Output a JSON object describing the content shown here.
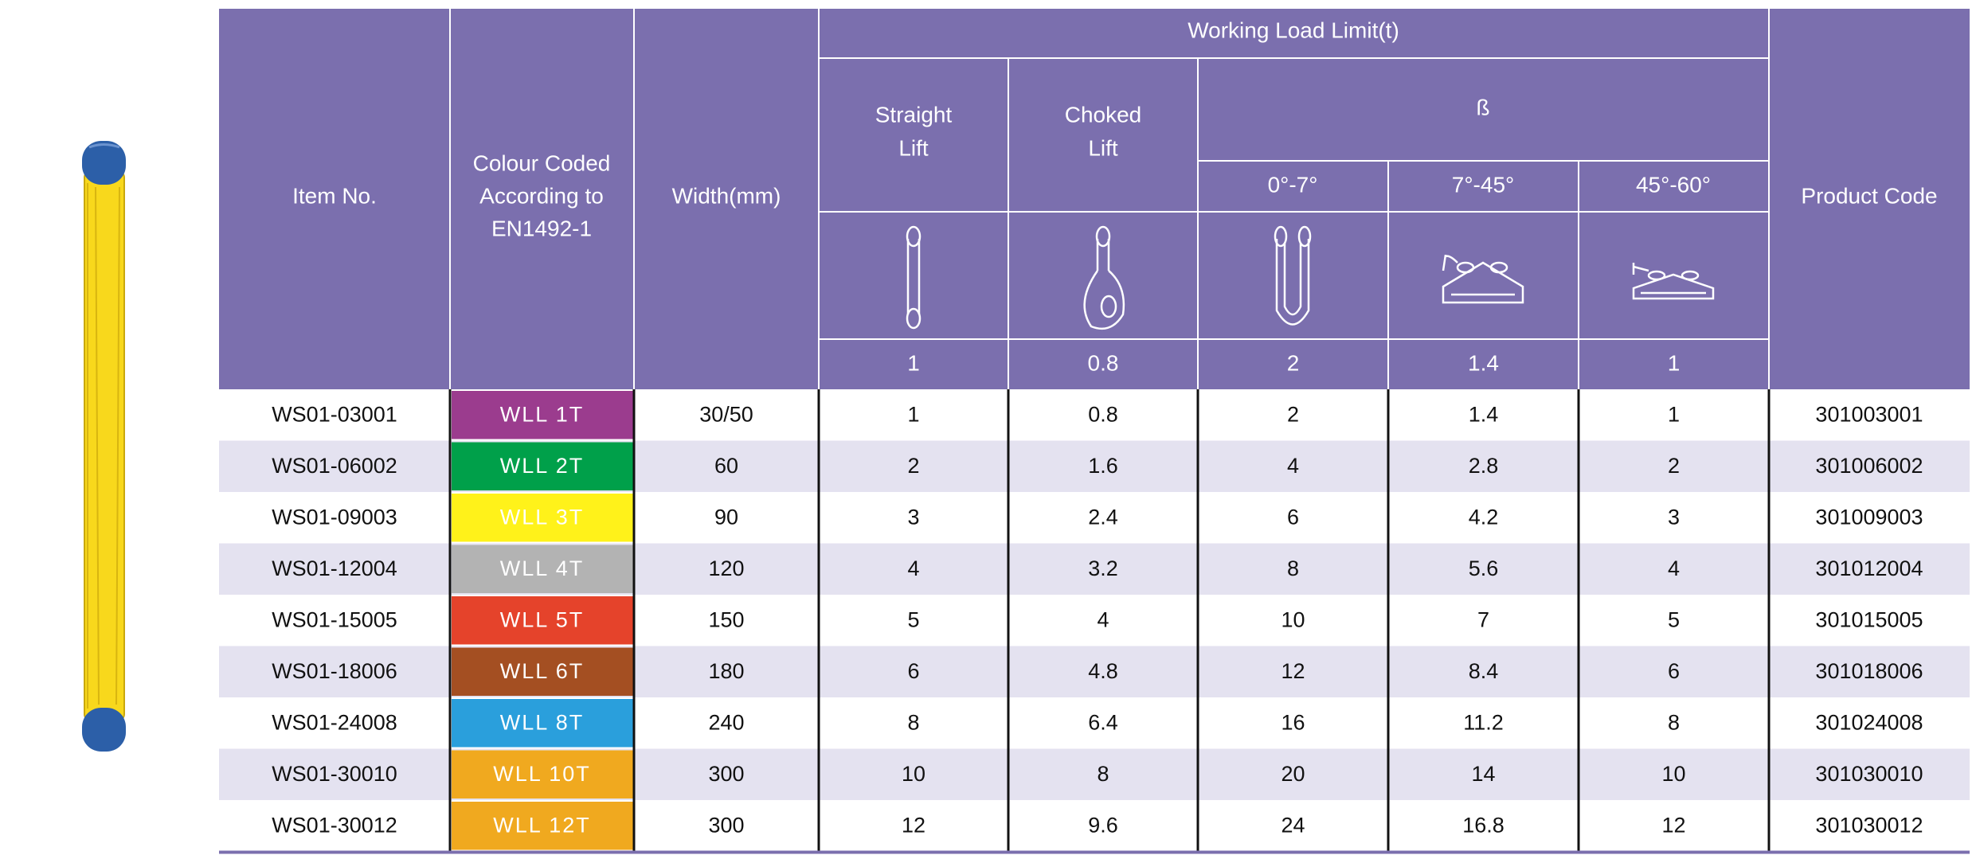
{
  "header": {
    "item_no": "Item No.",
    "colour": [
      "Colour Coded",
      "According to",
      "EN1492-1"
    ],
    "width": "Width(mm)",
    "wll": "Working Load Limit(t)",
    "straight": [
      "Straight",
      "Lift"
    ],
    "choked": [
      "Choked",
      "Lift"
    ],
    "beta": "ß",
    "angles": [
      "0°-7°",
      "7°-45°",
      "45°-60°"
    ],
    "factors": [
      1,
      0.8,
      2,
      1.4,
      1
    ],
    "product_code": "Product Code"
  },
  "rows": [
    [
      "WS01-03001",
      "WLL 1T",
      "30/50",
      1,
      0.8,
      2,
      1.4,
      1,
      "301003001"
    ],
    [
      "WS01-06002",
      "WLL 2T",
      "60",
      2,
      1.6,
      4,
      2.8,
      2,
      "301006002"
    ],
    [
      "WS01-09003",
      "WLL 3T",
      "90",
      3,
      2.4,
      6,
      4.2,
      3,
      "301009003"
    ],
    [
      "WS01-12004",
      "WLL 4T",
      "120",
      4,
      3.2,
      8,
      5.6,
      4,
      "301012004"
    ],
    [
      "WS01-15005",
      "WLL 5T",
      "150",
      5,
      4,
      10,
      7,
      5,
      "301015005"
    ],
    [
      "WS01-18006",
      "WLL 6T",
      "180",
      6,
      4.8,
      12,
      8.4,
      6,
      "301018006"
    ],
    [
      "WS01-24008",
      "WLL 8T",
      "240",
      8,
      6.4,
      16,
      11.2,
      8,
      "301024008"
    ],
    [
      "WS01-30010",
      "WLL 10T",
      "300",
      10,
      8,
      20,
      14,
      10,
      "301030010"
    ],
    [
      "WS01-30012",
      "WLL 12T",
      "300",
      12,
      9.6,
      24,
      16.8,
      12,
      "301030012"
    ]
  ],
  "colours": [
    "#9b3c8e",
    "#00a04a",
    "#fff21a",
    "#b3b3b3",
    "#e5432b",
    "#a44f22",
    "#2a9fdc",
    "#f0a91f",
    "#f0a91f"
  ]
}
